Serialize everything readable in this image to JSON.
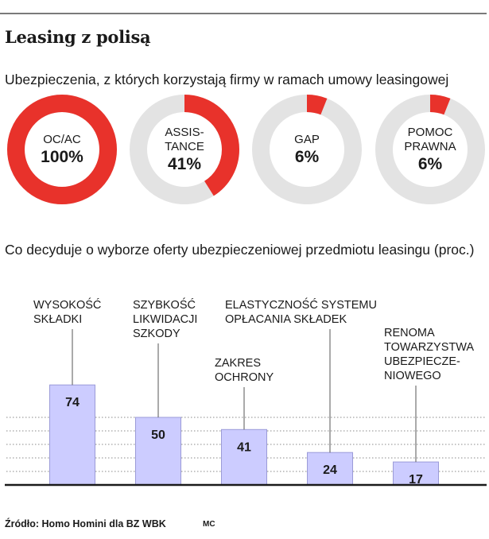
{
  "title": "Leasing z polisą",
  "source": "Źródło: Homo Homini dla BZ WBK",
  "author": "MC",
  "colors": {
    "accent": "#e8322b",
    "ring_bg": "#e3e3e3",
    "bar_fill": "#ccccff",
    "bar_stroke": "#9b9bd8"
  },
  "chart_data": [
    {
      "type": "pie",
      "title": "Ubezpieczenia, z których korzystają firmy w ramach umowy leasingowej",
      "categories": [
        "OC/AC",
        "ASSIS-\nTANCE",
        "GAP",
        "POMOC\nPRAWNA"
      ],
      "values": [
        100,
        41,
        6,
        6
      ],
      "value_labels": [
        "100%",
        "41%",
        "6%",
        "6%"
      ]
    },
    {
      "type": "bar",
      "title": "Co decyduje o wyborze oferty ubezpieczeniowej przedmiotu leasingu (proc.)",
      "categories": [
        "WYSOKOŚĆ\nSKŁADKI",
        "SZYBKOŚĆ\nLIKWIDACJI\nSZKODY",
        "ZAKRES\nOCHRONY",
        "ELASTYCZNOŚĆ SYSTEMU\nOPŁACANIA SKŁADEK",
        "RENOMA\nTOWARZYSTWA\nUBEZPIECZE-\nNIOWEGO"
      ],
      "values": [
        74,
        50,
        41,
        24,
        17
      ],
      "ylim": [
        0,
        100
      ],
      "grid": true
    }
  ]
}
